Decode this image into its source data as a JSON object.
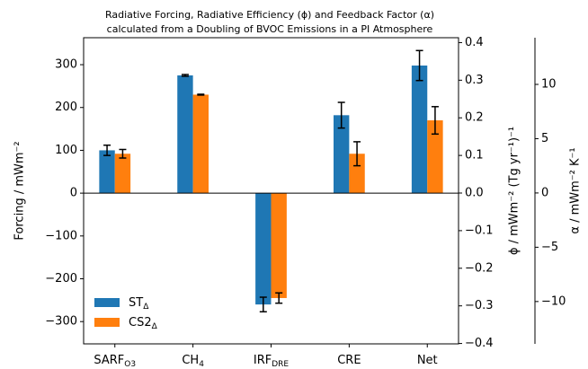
{
  "chart_data": {
    "type": "bar",
    "title": [
      "Radiative Forcing, Radiative Efficiency (ϕ) and Feedback Factor (α)",
      "calculated from a Doubling of BVOC Emissions in a PI Atmosphere"
    ],
    "categories": [
      {
        "text": "SARF",
        "sub": "O3"
      },
      {
        "text": "CH",
        "sub": "4"
      },
      {
        "text": "IRF",
        "sub": "DRE"
      },
      {
        "text": "CRE"
      },
      {
        "text": "Net"
      }
    ],
    "series": [
      {
        "name": {
          "text": "ST",
          "sub": "Δ"
        },
        "color": "#1f77b4",
        "values": [
          100,
          275,
          -260,
          182,
          298
        ],
        "errors": [
          12,
          2,
          17,
          30,
          35
        ]
      },
      {
        "name": {
          "text": "CS2",
          "sub": "Δ"
        },
        "color": "#ff7f0e",
        "values": [
          92,
          230,
          -245,
          92,
          170
        ],
        "errors": [
          10,
          1,
          12,
          28,
          32
        ]
      }
    ],
    "ylabel": "Forcing / mWm⁻²",
    "ylim": [
      -352,
      363
    ],
    "yticks": [
      {
        "value": -300,
        "label": "−300"
      },
      {
        "value": -200,
        "label": "−200"
      },
      {
        "value": -100,
        "label": "−100"
      },
      0,
      100,
      200,
      300
    ],
    "y2label": "ϕ / mWm⁻² (Tg yr⁻¹)⁻¹",
    "y2lim": [
      -0.401,
      0.413
    ],
    "y2ticks": [
      {
        "value": -0.4,
        "label": "−0.4"
      },
      {
        "value": -0.3,
        "label": "−0.3"
      },
      {
        "value": -0.2,
        "label": "−0.2"
      },
      {
        "value": -0.1,
        "label": "−0.1"
      },
      {
        "value": 0,
        "label": "0.0"
      },
      0.1,
      0.2,
      0.3,
      0.4
    ],
    "y3label": "α / mWm⁻² K⁻¹",
    "y3lim": [
      -13.9,
      14.3
    ],
    "y3ticks": [
      {
        "value": -10,
        "label": "−10"
      },
      {
        "value": -5,
        "label": "−5"
      },
      0,
      5,
      10
    ],
    "legend": "lower left"
  }
}
